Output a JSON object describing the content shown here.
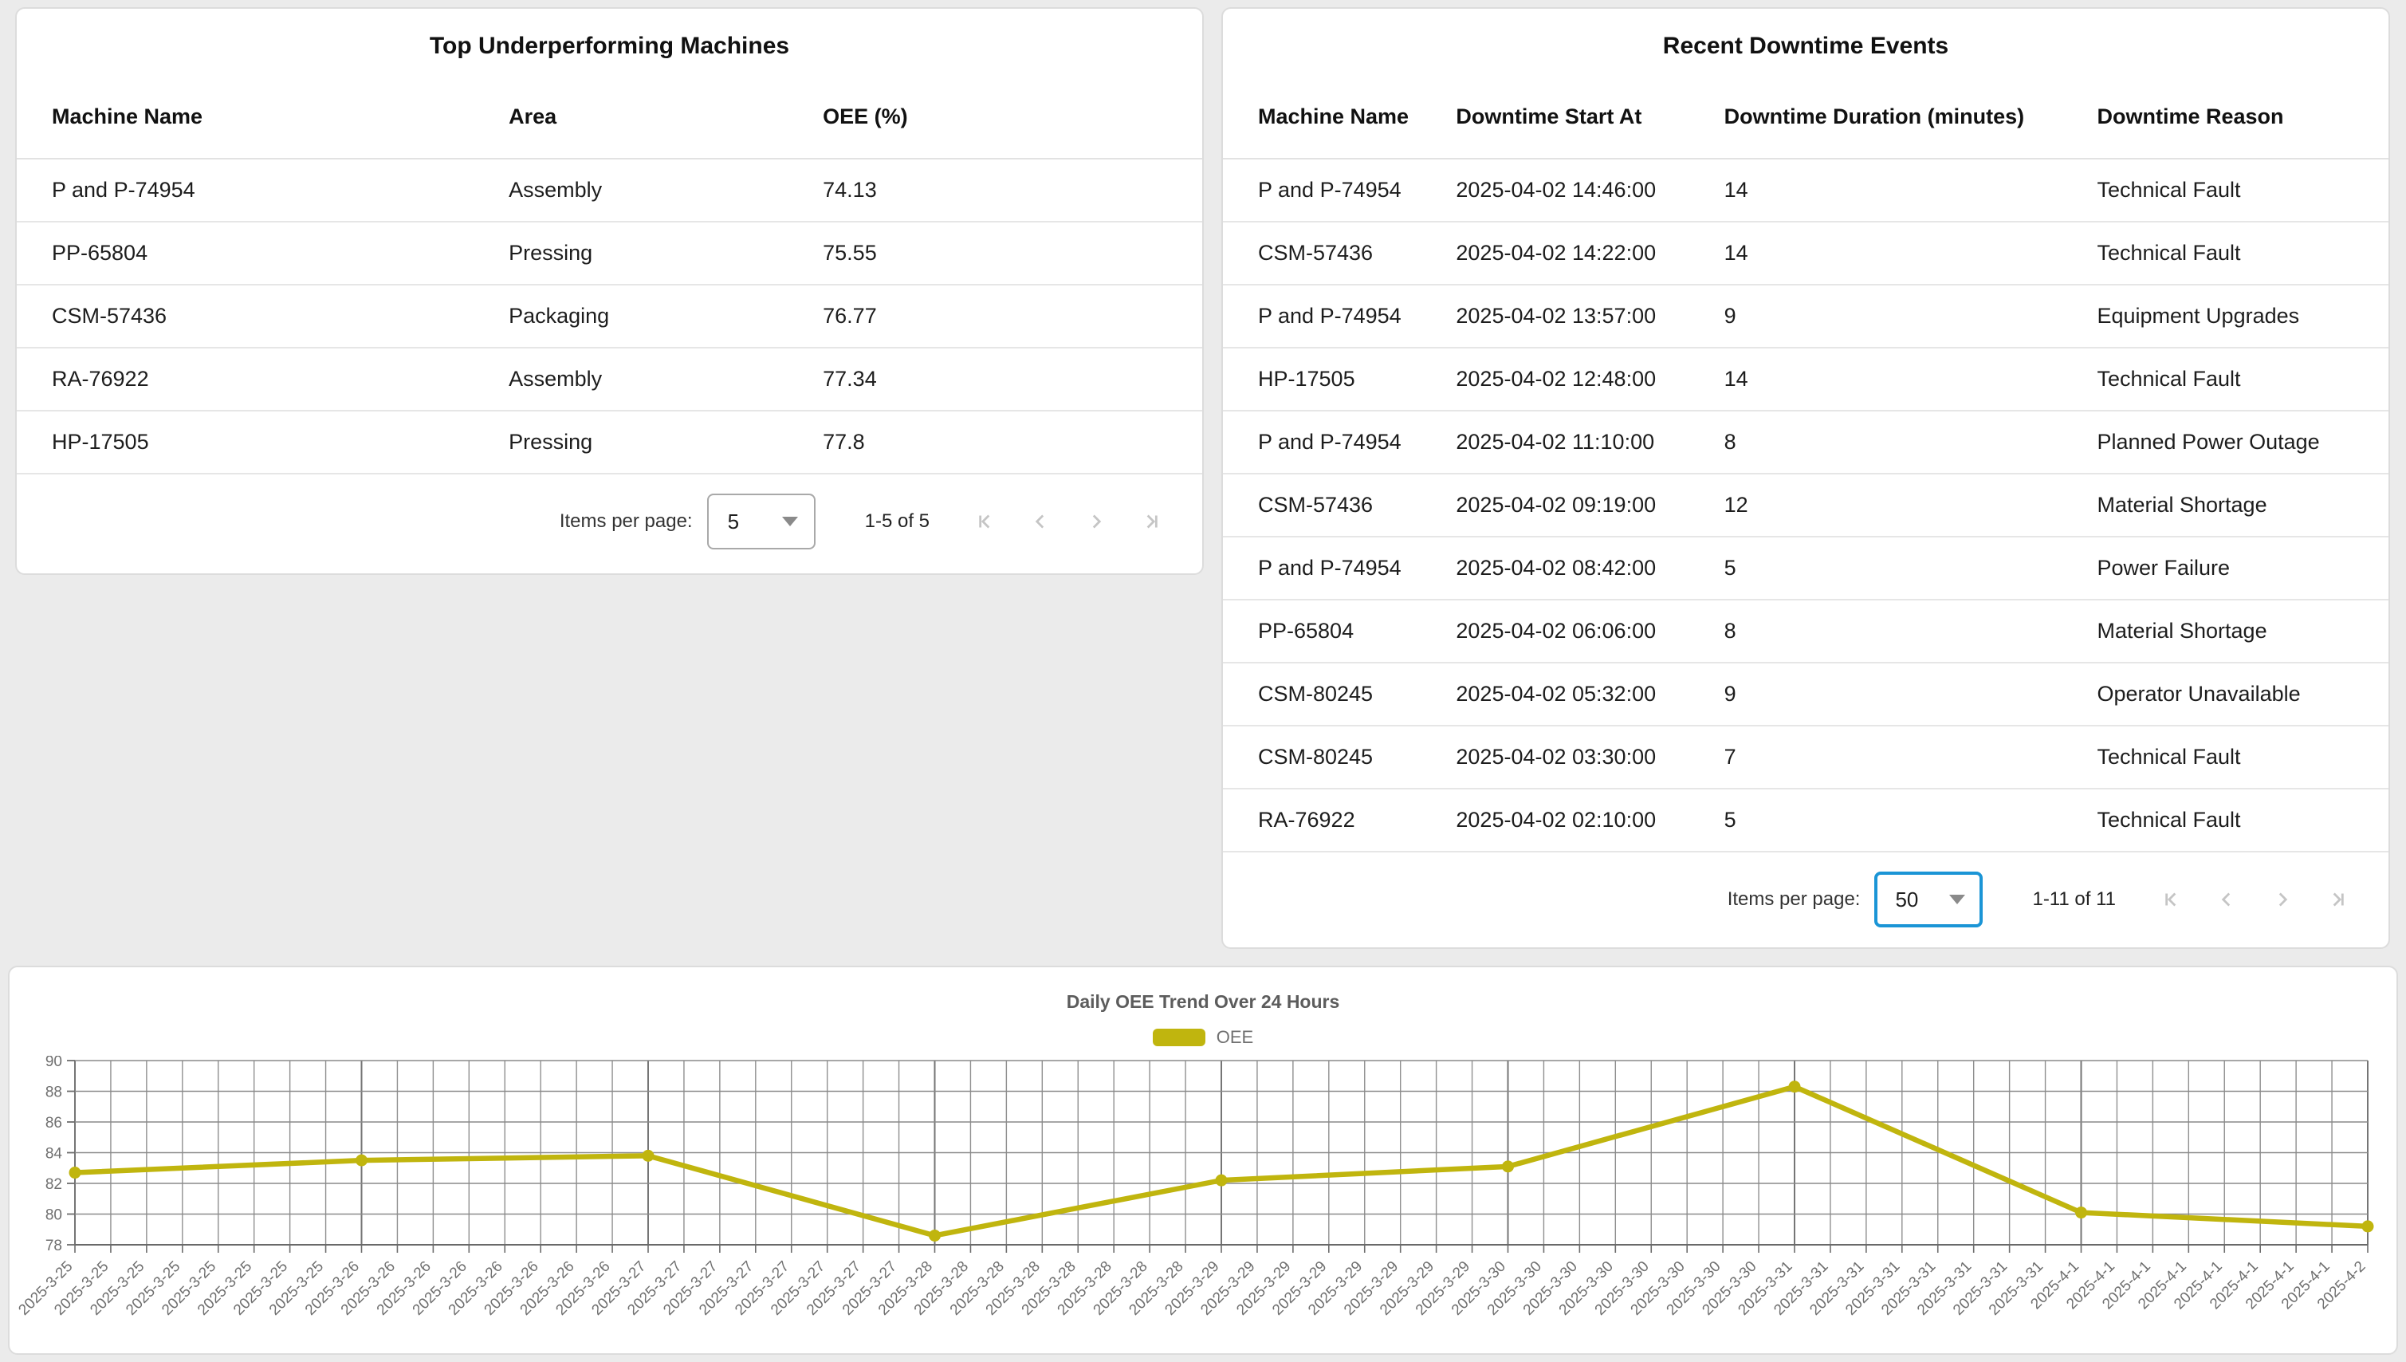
{
  "page": {
    "background": "#ebebeb"
  },
  "colors": {
    "focus_blue": "#1b95d6",
    "disabled_icon": "#c5c5c5",
    "line_yellow": "#c0b50e"
  },
  "cards": {
    "underperforming": {
      "title": "Top Underperforming Machines",
      "columns": [
        "Machine Name",
        "Area",
        "OEE (%)"
      ],
      "rows": [
        [
          "P and P-74954",
          "Assembly",
          "74.13"
        ],
        [
          "PP-65804",
          "Pressing",
          "75.55"
        ],
        [
          "CSM-57436",
          "Packaging",
          "76.77"
        ],
        [
          "RA-76922",
          "Assembly",
          "77.34"
        ],
        [
          "HP-17505",
          "Pressing",
          "77.8"
        ]
      ],
      "paginator": {
        "items_per_page_label": "Items per page:",
        "page_size": "5",
        "range_label": "1-5 of 5"
      }
    },
    "downtime": {
      "title": "Recent Downtime Events",
      "columns": [
        "Machine Name",
        "Downtime Start At",
        "Downtime Duration (minutes)",
        "Downtime Reason"
      ],
      "rows": [
        [
          "P and P-74954",
          "2025-04-02 14:46:00",
          "14",
          "Technical Fault"
        ],
        [
          "CSM-57436",
          "2025-04-02 14:22:00",
          "14",
          "Technical Fault"
        ],
        [
          "P and P-74954",
          "2025-04-02 13:57:00",
          "9",
          "Equipment Upgrades"
        ],
        [
          "HP-17505",
          "2025-04-02 12:48:00",
          "14",
          "Technical Fault"
        ],
        [
          "P and P-74954",
          "2025-04-02 11:10:00",
          "8",
          "Planned Power Outage"
        ],
        [
          "CSM-57436",
          "2025-04-02 09:19:00",
          "12",
          "Material Shortage"
        ],
        [
          "P and P-74954",
          "2025-04-02 08:42:00",
          "5",
          "Power Failure"
        ],
        [
          "PP-65804",
          "2025-04-02 06:06:00",
          "8",
          "Material Shortage"
        ],
        [
          "CSM-80245",
          "2025-04-02 05:32:00",
          "9",
          "Operator Unavailable"
        ],
        [
          "CSM-80245",
          "2025-04-02 03:30:00",
          "7",
          "Technical Fault"
        ],
        [
          "RA-76922",
          "2025-04-02 02:10:00",
          "5",
          "Technical Fault"
        ]
      ],
      "paginator": {
        "items_per_page_label": "Items per page:",
        "page_size": "50",
        "range_label": "1-11 of 11"
      }
    }
  },
  "chart_data": {
    "type": "line",
    "title": "Daily OEE Trend Over 24 Hours",
    "legend": {
      "entries": [
        "OEE"
      ],
      "position": "top-center"
    },
    "series": [
      {
        "name": "OEE",
        "color": "#c0b50e",
        "x": [
          "2025-3-25",
          "2025-3-26",
          "2025-3-27",
          "2025-3-28",
          "2025-3-29",
          "2025-3-30",
          "2025-3-31",
          "2025-4-1",
          "2025-4-2"
        ],
        "values": [
          82.7,
          83.5,
          83.8,
          78.6,
          82.2,
          83.1,
          88.3,
          80.1,
          79.2
        ]
      }
    ],
    "x_axis": {
      "tick_labels_repeat_per_day": 8,
      "total_ticks": 65,
      "label_rotation_deg": -45
    },
    "y_axis": {
      "min": 78,
      "max": 90,
      "tick_step": 2,
      "ticks": [
        78,
        80,
        82,
        84,
        86,
        88,
        90
      ]
    },
    "grid": true
  }
}
